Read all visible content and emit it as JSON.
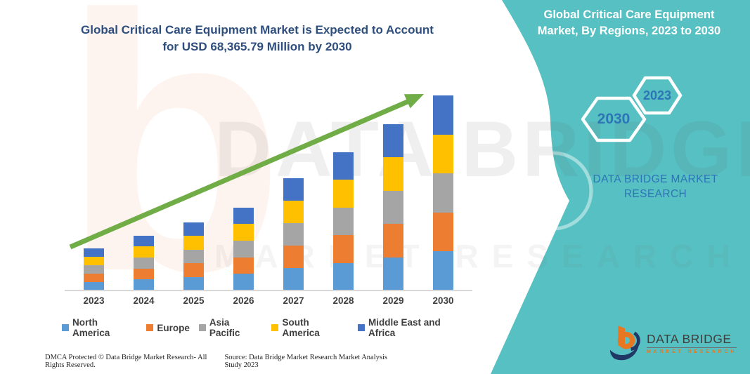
{
  "header": {
    "title_line1": "Global Critical Care Equipment Market is Expected to Account",
    "title_line2": "for USD 68,365.79 Million by 2030"
  },
  "side_panel": {
    "background_color": "#56C0C2",
    "text_color": "#2E75B6",
    "title_line1": "Global Critical Care Equipment",
    "title_line2": "Market, By Regions, 2023 to 2030",
    "hexagons": [
      {
        "label": "2030"
      },
      {
        "label": "2023"
      }
    ],
    "brand_line1": "DATA BRIDGE MARKET",
    "brand_line2": "RESEARCH"
  },
  "watermark": {
    "logo_glyph": "b",
    "big_text": "DATA BRIDGE",
    "sub_text": "MARKET RESEARCH"
  },
  "chart_data": {
    "type": "bar",
    "stacked": true,
    "title": "Global Critical Care Equipment Market, By Regions, 2023 to 2030",
    "unit": "USD Million",
    "categories": [
      "2023",
      "2024",
      "2025",
      "2026",
      "2027",
      "2028",
      "2029",
      "2030"
    ],
    "series": [
      {
        "name": "North America",
        "color": "#5B9BD5",
        "values": [
          2980,
          3868,
          4805,
          5840,
          7860,
          9684,
          11655,
          13673.16
        ]
      },
      {
        "name": "Europe",
        "color": "#ED7D31",
        "values": [
          2980,
          3868,
          4805,
          5840,
          7860,
          9684,
          11655,
          13673.16
        ]
      },
      {
        "name": "Asia Pacific",
        "color": "#A5A5A5",
        "values": [
          2980,
          3868,
          4805,
          5840,
          7860,
          9684,
          11655,
          13673.16
        ]
      },
      {
        "name": "South America",
        "color": "#FFC000",
        "values": [
          2980,
          3868,
          4805,
          5840,
          7860,
          9684,
          11655,
          13673.16
        ]
      },
      {
        "name": "Middle East and Africa",
        "color": "#4472C4",
        "values": [
          2980,
          3868,
          4805,
          5840,
          7860,
          9684,
          11655,
          13673.16
        ]
      }
    ],
    "totals": [
      14900,
      19340,
      24025,
      29200,
      39300,
      48420,
      58275,
      68365.79
    ],
    "ylim": [
      0,
      68365.79
    ],
    "y_axis_visible": false,
    "gridlines": false,
    "legend_position": "bottom",
    "trend_arrow": true,
    "trend_arrow_color": "#70AD47",
    "baseline_color": "#D8D8D8",
    "annotation_2030_total": "USD 68,365.79 Million"
  },
  "footer": {
    "left": "DMCA Protected © Data Bridge Market Research-  All Rights Reserved.",
    "right": "Source: Data Bridge Market Research  Market Analysis Study 2023"
  },
  "logo": {
    "name": "DATA BRIDGE",
    "tagline": "MARKET RESEARCH"
  }
}
